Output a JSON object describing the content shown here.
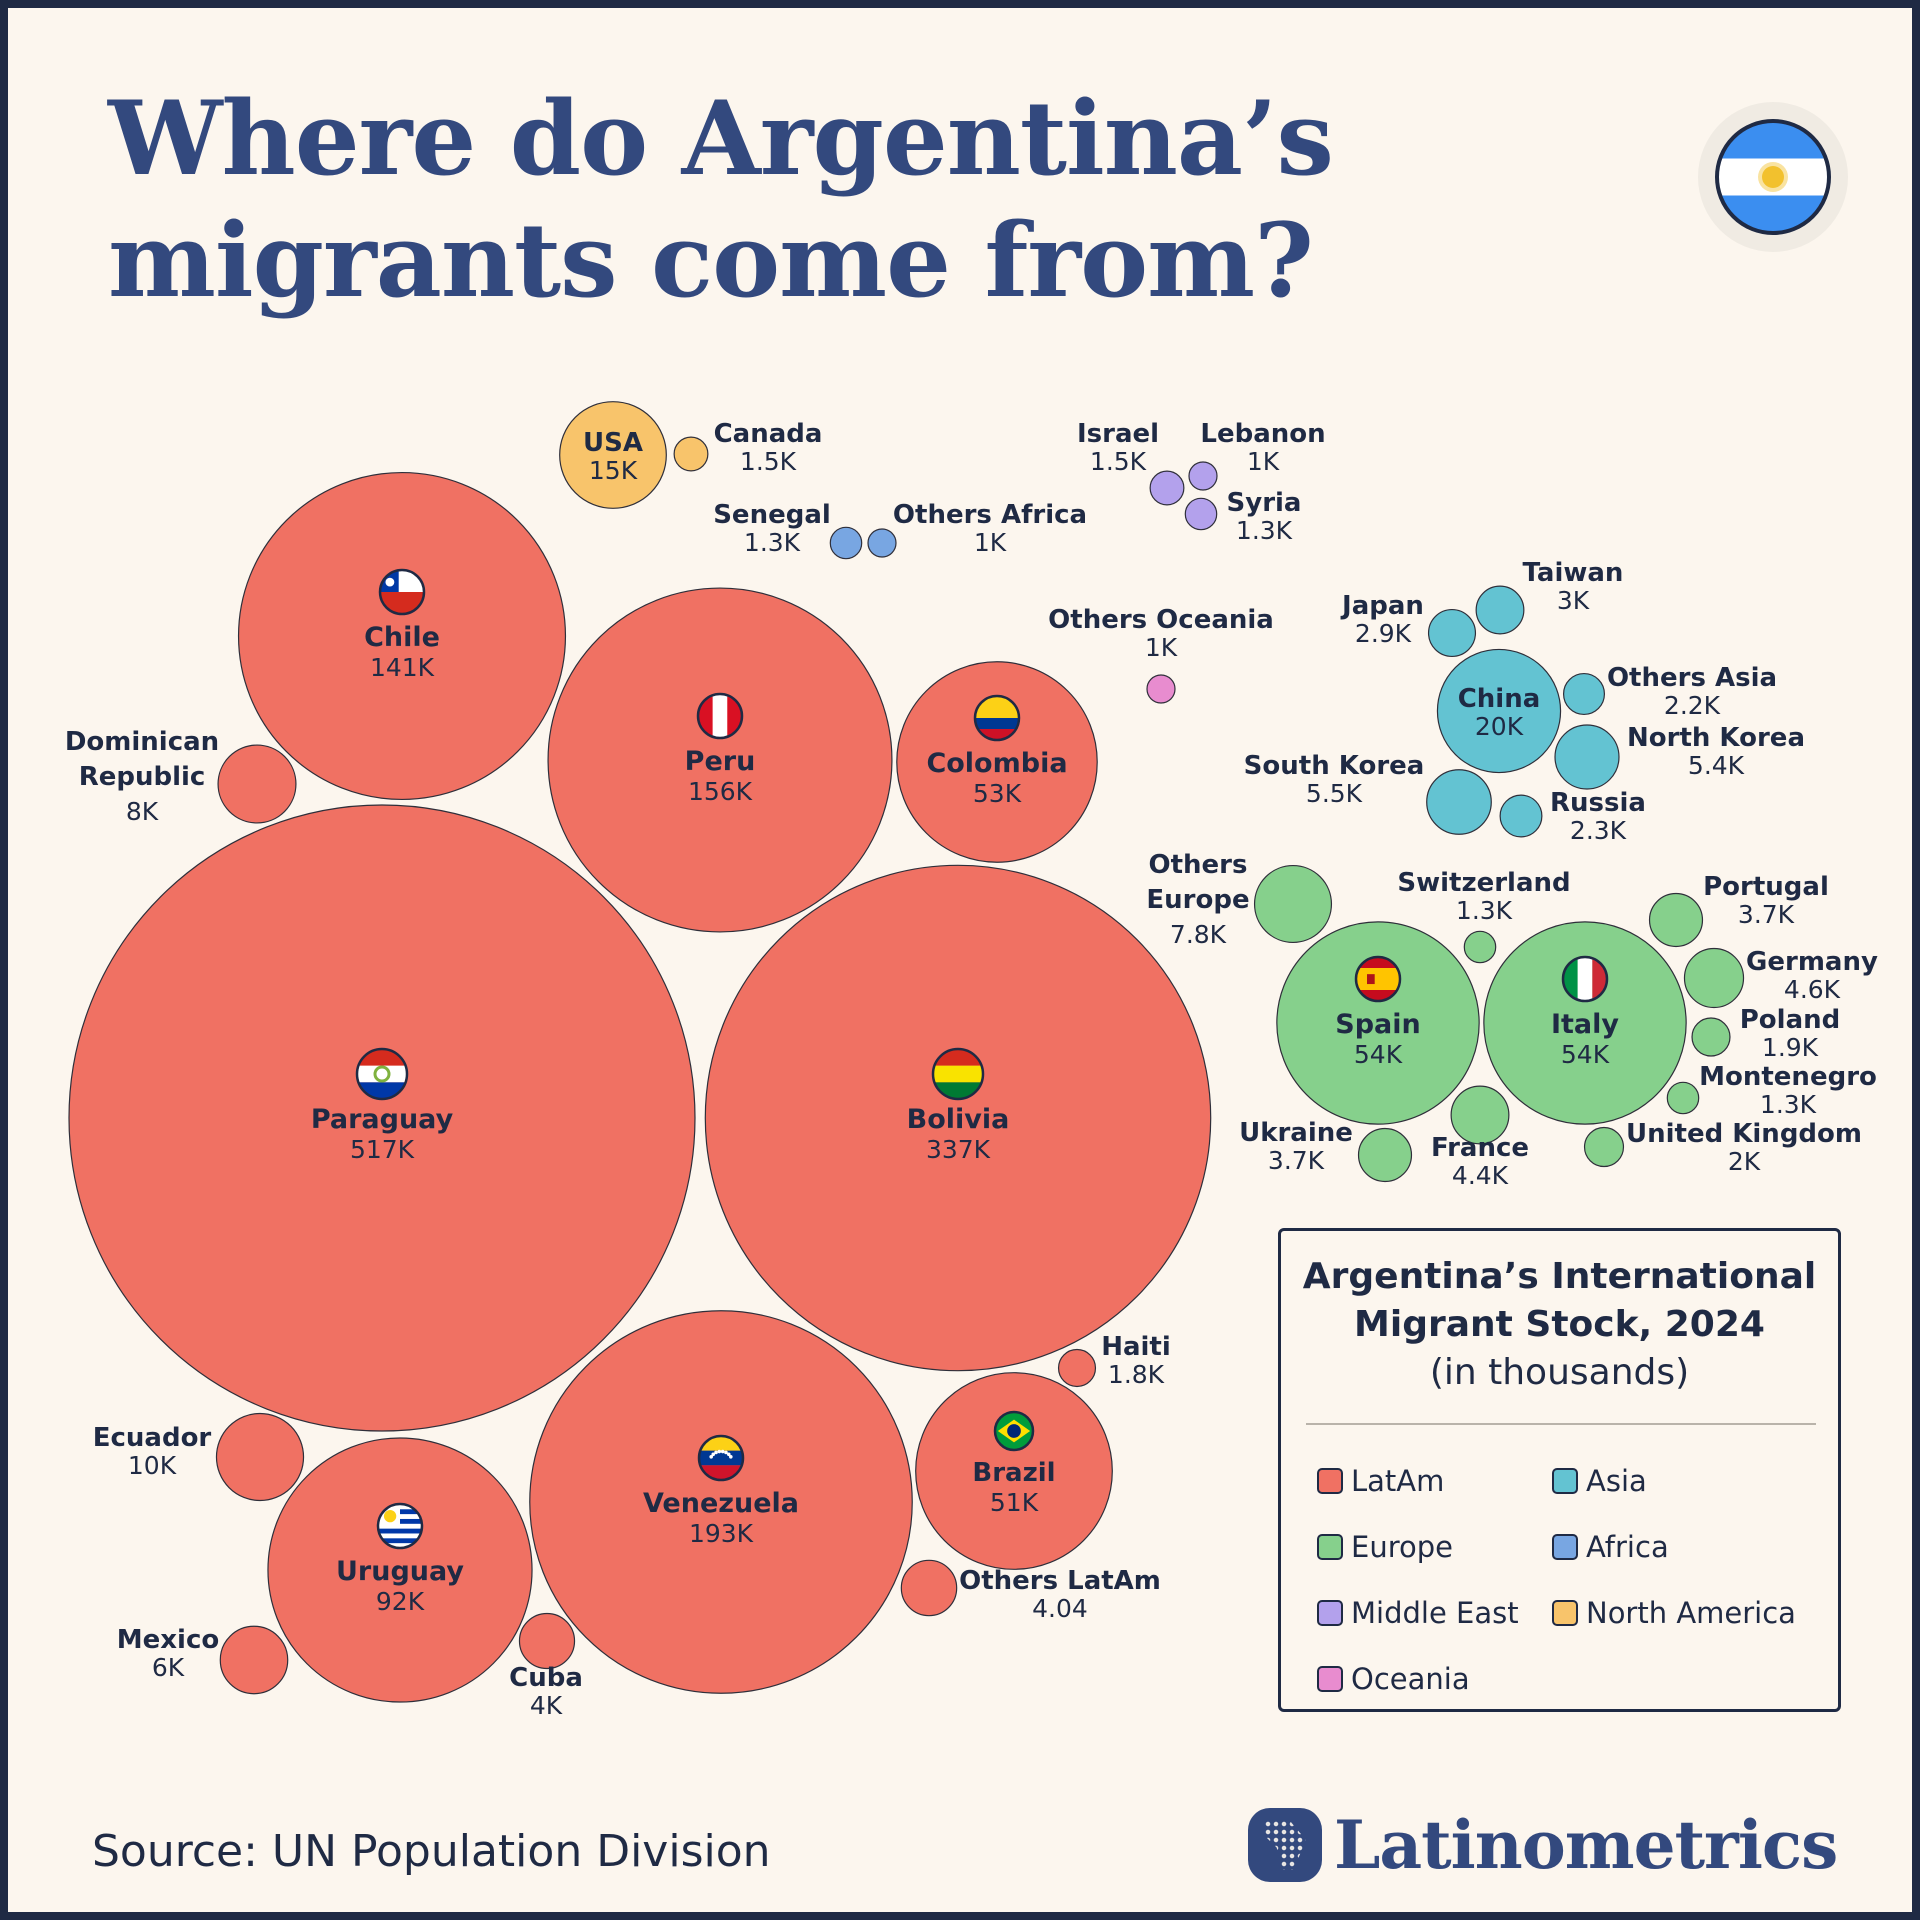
{
  "title_lines": [
    "Where do Argentina’s",
    "migrants come from?"
  ],
  "legend": {
    "title_lines": [
      "Argentina’s International",
      "Migrant Stock, 2024"
    ],
    "subtitle": "(in thousands)",
    "items": [
      {
        "region": "LatAm",
        "label": "LatAm",
        "color": "#f07163"
      },
      {
        "region": "Asia",
        "label": "Asia",
        "color": "#63c3d2"
      },
      {
        "region": "Europe",
        "label": "Europe",
        "color": "#86d08c"
      },
      {
        "region": "Africa",
        "label": "Africa",
        "color": "#78a6e2"
      },
      {
        "region": "MiddleEast",
        "label": "Middle East",
        "color": "#b3a1ec"
      },
      {
        "region": "NorthAmerica",
        "label": "North America",
        "color": "#f8c46b"
      },
      {
        "region": "Oceania",
        "label": "Oceania",
        "color": "#e88ccf"
      }
    ]
  },
  "source": "Source: UN Population Division",
  "brand": "Latinometrics",
  "chart_data": {
    "type": "bubble",
    "title": "Where do Argentina’s migrants come from?",
    "unit": "thousands",
    "series": [
      {
        "country": "Paraguay",
        "value_label": "517K",
        "value": 517,
        "region": "LatAm",
        "flag": "paraguay"
      },
      {
        "country": "Bolivia",
        "value_label": "337K",
        "value": 337,
        "region": "LatAm",
        "flag": "bolivia"
      },
      {
        "country": "Venezuela",
        "value_label": "193K",
        "value": 193,
        "region": "LatAm",
        "flag": "venezuela"
      },
      {
        "country": "Peru",
        "value_label": "156K",
        "value": 156,
        "region": "LatAm",
        "flag": "peru"
      },
      {
        "country": "Chile",
        "value_label": "141K",
        "value": 141,
        "region": "LatAm",
        "flag": "chile"
      },
      {
        "country": "Uruguay",
        "value_label": "92K",
        "value": 92,
        "region": "LatAm",
        "flag": "uruguay"
      },
      {
        "country": "Colombia",
        "value_label": "53K",
        "value": 53,
        "region": "LatAm",
        "flag": "colombia"
      },
      {
        "country": "Brazil",
        "value_label": "51K",
        "value": 51,
        "region": "LatAm",
        "flag": "brazil"
      },
      {
        "country": "Ecuador",
        "value_label": "10K",
        "value": 10,
        "region": "LatAm"
      },
      {
        "country": "Dominican\nRepublic",
        "value_label": "8K",
        "value": 8,
        "region": "LatAm"
      },
      {
        "country": "Mexico",
        "value_label": "6K",
        "value": 6,
        "region": "LatAm"
      },
      {
        "country": "Cuba",
        "value_label": "4K",
        "value": 4,
        "region": "LatAm"
      },
      {
        "country": "Others LatAm",
        "value_label": "4.04",
        "value": 4.04,
        "region": "LatAm"
      },
      {
        "country": "Haiti",
        "value_label": "1.8K",
        "value": 1.8,
        "region": "LatAm"
      },
      {
        "country": "USA",
        "value_label": "15K",
        "value": 15,
        "region": "NorthAmerica"
      },
      {
        "country": "Canada",
        "value_label": "1.5K",
        "value": 1.5,
        "region": "NorthAmerica"
      },
      {
        "country": "Senegal",
        "value_label": "1.3K",
        "value": 1.3,
        "region": "Africa"
      },
      {
        "country": "Others Africa",
        "value_label": "1K",
        "value": 1,
        "region": "Africa"
      },
      {
        "country": "Israel",
        "value_label": "1.5K",
        "value": 1.5,
        "region": "MiddleEast"
      },
      {
        "country": "Lebanon",
        "value_label": "1K",
        "value": 1,
        "region": "MiddleEast"
      },
      {
        "country": "Syria",
        "value_label": "1.3K",
        "value": 1.3,
        "region": "MiddleEast"
      },
      {
        "country": "Others Oceania",
        "value_label": "1K",
        "value": 1,
        "region": "Oceania"
      },
      {
        "country": "China",
        "value_label": "20K",
        "value": 20,
        "region": "Asia"
      },
      {
        "country": "Taiwan",
        "value_label": "3K",
        "value": 3,
        "region": "Asia"
      },
      {
        "country": "Japan",
        "value_label": "2.9K",
        "value": 2.9,
        "region": "Asia"
      },
      {
        "country": "Others Asia",
        "value_label": "2.2K",
        "value": 2.2,
        "region": "Asia"
      },
      {
        "country": "North Korea",
        "value_label": "5.4K",
        "value": 5.4,
        "region": "Asia"
      },
      {
        "country": "South Korea",
        "value_label": "5.5K",
        "value": 5.5,
        "region": "Asia"
      },
      {
        "country": "Russia",
        "value_label": "2.3K",
        "value": 2.3,
        "region": "Asia"
      },
      {
        "country": "Spain",
        "value_label": "54K",
        "value": 54,
        "region": "Europe",
        "flag": "spain"
      },
      {
        "country": "Italy",
        "value_label": "54K",
        "value": 54,
        "region": "Europe",
        "flag": "italy"
      },
      {
        "country": "Others\nEurope",
        "value_label": "7.8K",
        "value": 7.8,
        "region": "Europe"
      },
      {
        "country": "Switzerland",
        "value_label": "1.3K",
        "value": 1.3,
        "region": "Europe"
      },
      {
        "country": "Portugal",
        "value_label": "3.7K",
        "value": 3.7,
        "region": "Europe"
      },
      {
        "country": "Germany",
        "value_label": "4.6K",
        "value": 4.6,
        "region": "Europe"
      },
      {
        "country": "Poland",
        "value_label": "1.9K",
        "value": 1.9,
        "region": "Europe"
      },
      {
        "country": "Montenegro",
        "value_label": "1.3K",
        "value": 1.3,
        "region": "Europe"
      },
      {
        "country": "United Kingdom",
        "value_label": "2K",
        "value": 2,
        "region": "Europe"
      },
      {
        "country": "France",
        "value_label": "4.4K",
        "value": 4.4,
        "region": "Europe"
      },
      {
        "country": "Ukraine",
        "value_label": "3.7K",
        "value": 3.7,
        "region": "Europe"
      }
    ]
  }
}
